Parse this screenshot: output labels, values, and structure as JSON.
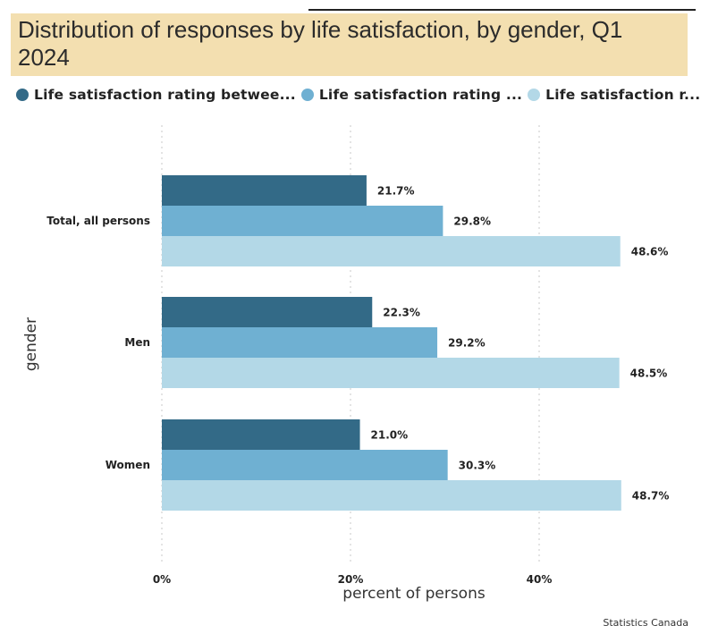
{
  "chart_data": {
    "type": "bar",
    "orientation": "horizontal",
    "title": "Distribution of responses by life satisfaction, by gender, Q1 2024",
    "xlabel": "percent of persons",
    "ylabel": "gender",
    "xlim": [
      0,
      0.5
    ],
    "x_ticks": [
      0,
      0.2,
      0.4
    ],
    "x_tick_labels": [
      "0%",
      "20%",
      "40%"
    ],
    "categories": [
      "Total, all persons",
      "Men",
      "Women"
    ],
    "series": [
      {
        "name": "Life satisfaction rating betwee...",
        "color": "#336a87",
        "values": [
          0.217,
          0.223,
          0.21
        ],
        "labels": [
          "21.7%",
          "22.3%",
          "21.0%"
        ]
      },
      {
        "name": "Life satisfaction rating ...",
        "color": "#6fb0d2",
        "values": [
          0.298,
          0.292,
          0.303
        ],
        "labels": [
          "29.8%",
          "29.2%",
          "30.3%"
        ]
      },
      {
        "name": "Life satisfaction r...",
        "color": "#b3d8e7",
        "values": [
          0.486,
          0.485,
          0.487
        ],
        "labels": [
          "48.6%",
          "48.5%",
          "48.7%"
        ]
      }
    ],
    "grid": "vertical dotted",
    "legend_position": "top-left"
  },
  "source": "Statistics Canada",
  "colors": {
    "title_background": "#f3dfb0"
  }
}
